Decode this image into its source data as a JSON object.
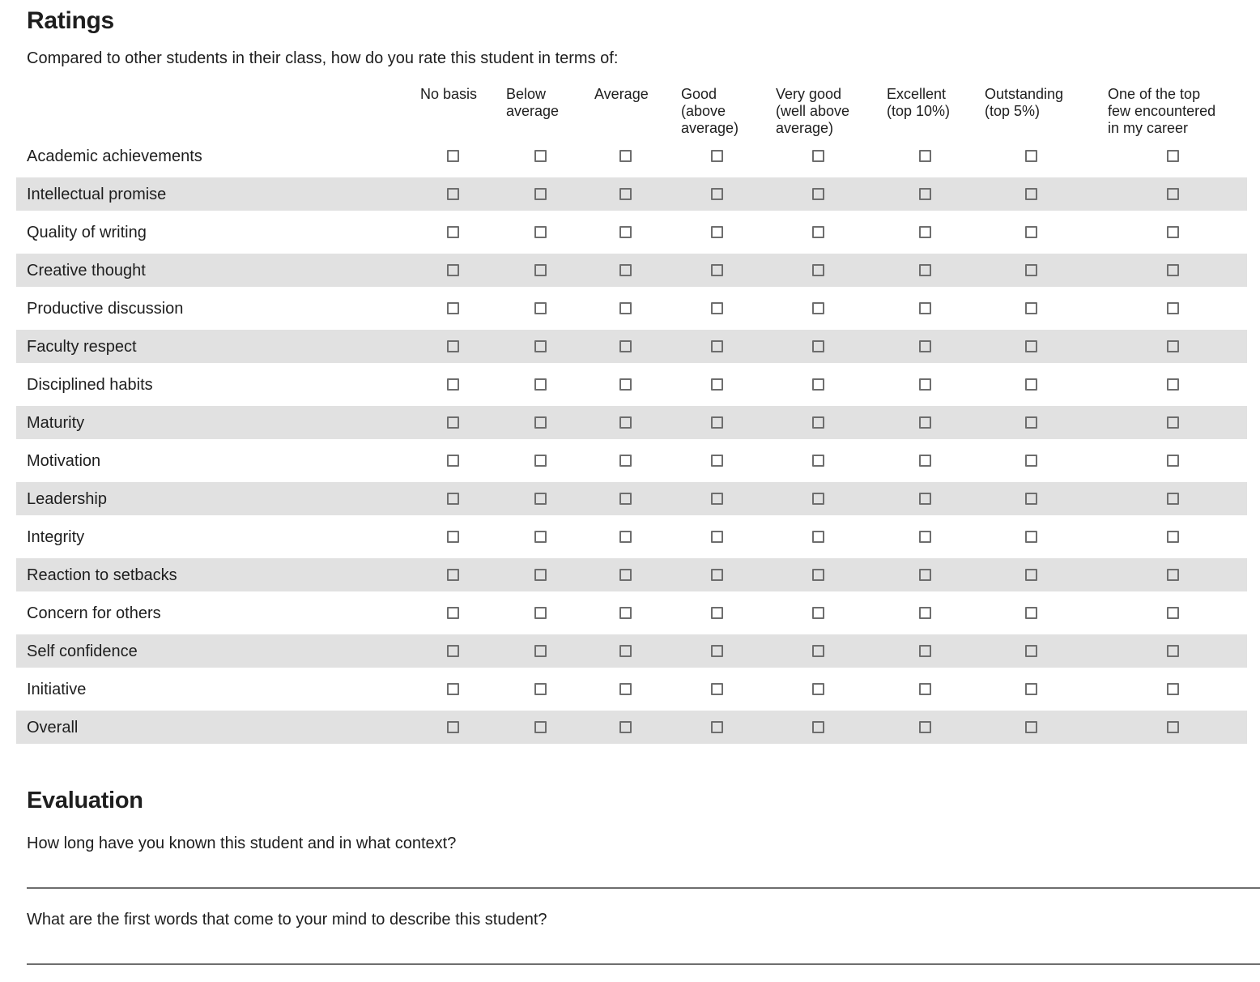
{
  "ratings": {
    "title": "Ratings",
    "subtitle": "Compared to other students in their class, how do you rate this student in terms of:",
    "columns": [
      "No basis",
      "Below\naverage",
      "Average",
      "Good\n(above\naverage)",
      "Very good\n(well above\naverage)",
      "Excellent\n(top 10%)",
      "Outstanding\n(top 5%)",
      "One of the top\nfew encountered\nin my career"
    ],
    "rows": [
      "Academic achievements",
      "Intellectual promise",
      "Quality of writing",
      "Creative thought",
      "Productive discussion",
      "Faculty respect",
      "Disciplined habits",
      "Maturity",
      "Motivation",
      "Leadership",
      "Integrity",
      "Reaction to setbacks",
      "Concern for others",
      "Self confidence",
      "Initiative",
      "Overall"
    ],
    "checked": []
  },
  "evaluation": {
    "title": "Evaluation",
    "questions": [
      "How long have you known this student and in what context?",
      "What are the first words that come to your mind to describe this student?"
    ],
    "answers": [
      "",
      ""
    ]
  },
  "colors": {
    "stripe": "#e1e1e1",
    "text": "#1e1e1e",
    "checkbox_border": "#6e6e6e",
    "underline": "#6e6e6e"
  }
}
